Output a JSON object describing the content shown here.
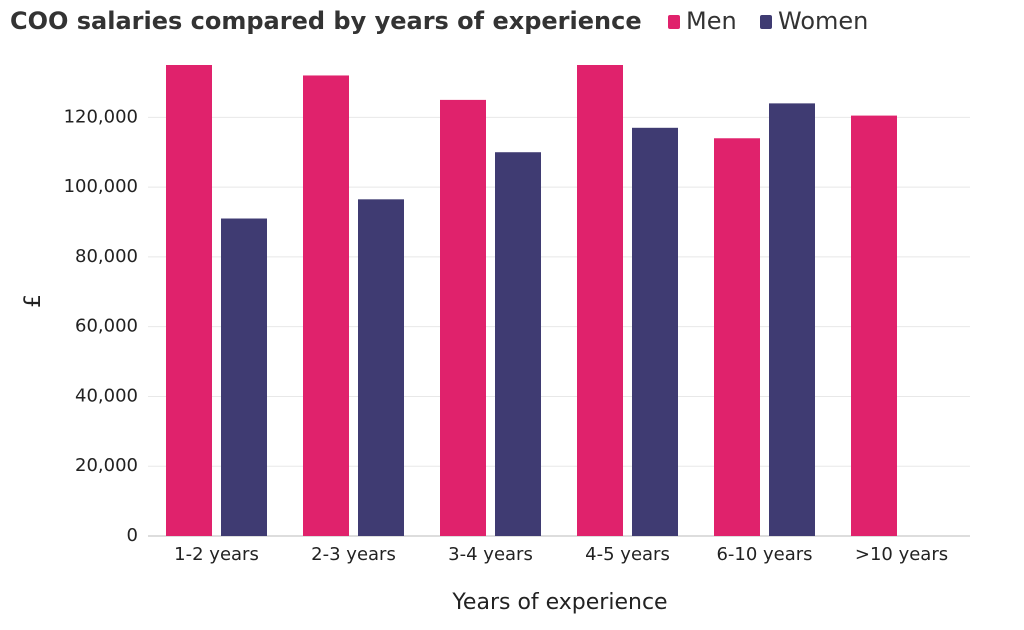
{
  "chart_data": {
    "type": "bar",
    "title": "COO salaries compared by years of experience",
    "x_label": "Years of experience",
    "y_label": "£",
    "categories": [
      "1-2 years",
      "2-3 years",
      "3-4 years",
      "4-5 years",
      "6-10 years",
      ">10 years"
    ],
    "series": [
      {
        "name": "Men",
        "color": "#e0226c",
        "values": [
          135000,
          132000,
          125000,
          135000,
          114000,
          120500
        ]
      },
      {
        "name": "Women",
        "color": "#3f3b72",
        "values": [
          91000,
          96500,
          110000,
          117000,
          124000,
          null
        ]
      }
    ],
    "ylim": [
      0,
      135000
    ],
    "yticks": [
      0,
      {
        "value": 20000,
        "label": "20,000"
      },
      {
        "value": 40000,
        "label": "40,000"
      },
      {
        "value": 60000,
        "label": "60,000"
      },
      {
        "value": 80000,
        "label": "80,000"
      },
      {
        "value": 100000,
        "label": "100,000"
      },
      {
        "value": 120000,
        "label": "120,000"
      }
    ],
    "grid": true
  }
}
